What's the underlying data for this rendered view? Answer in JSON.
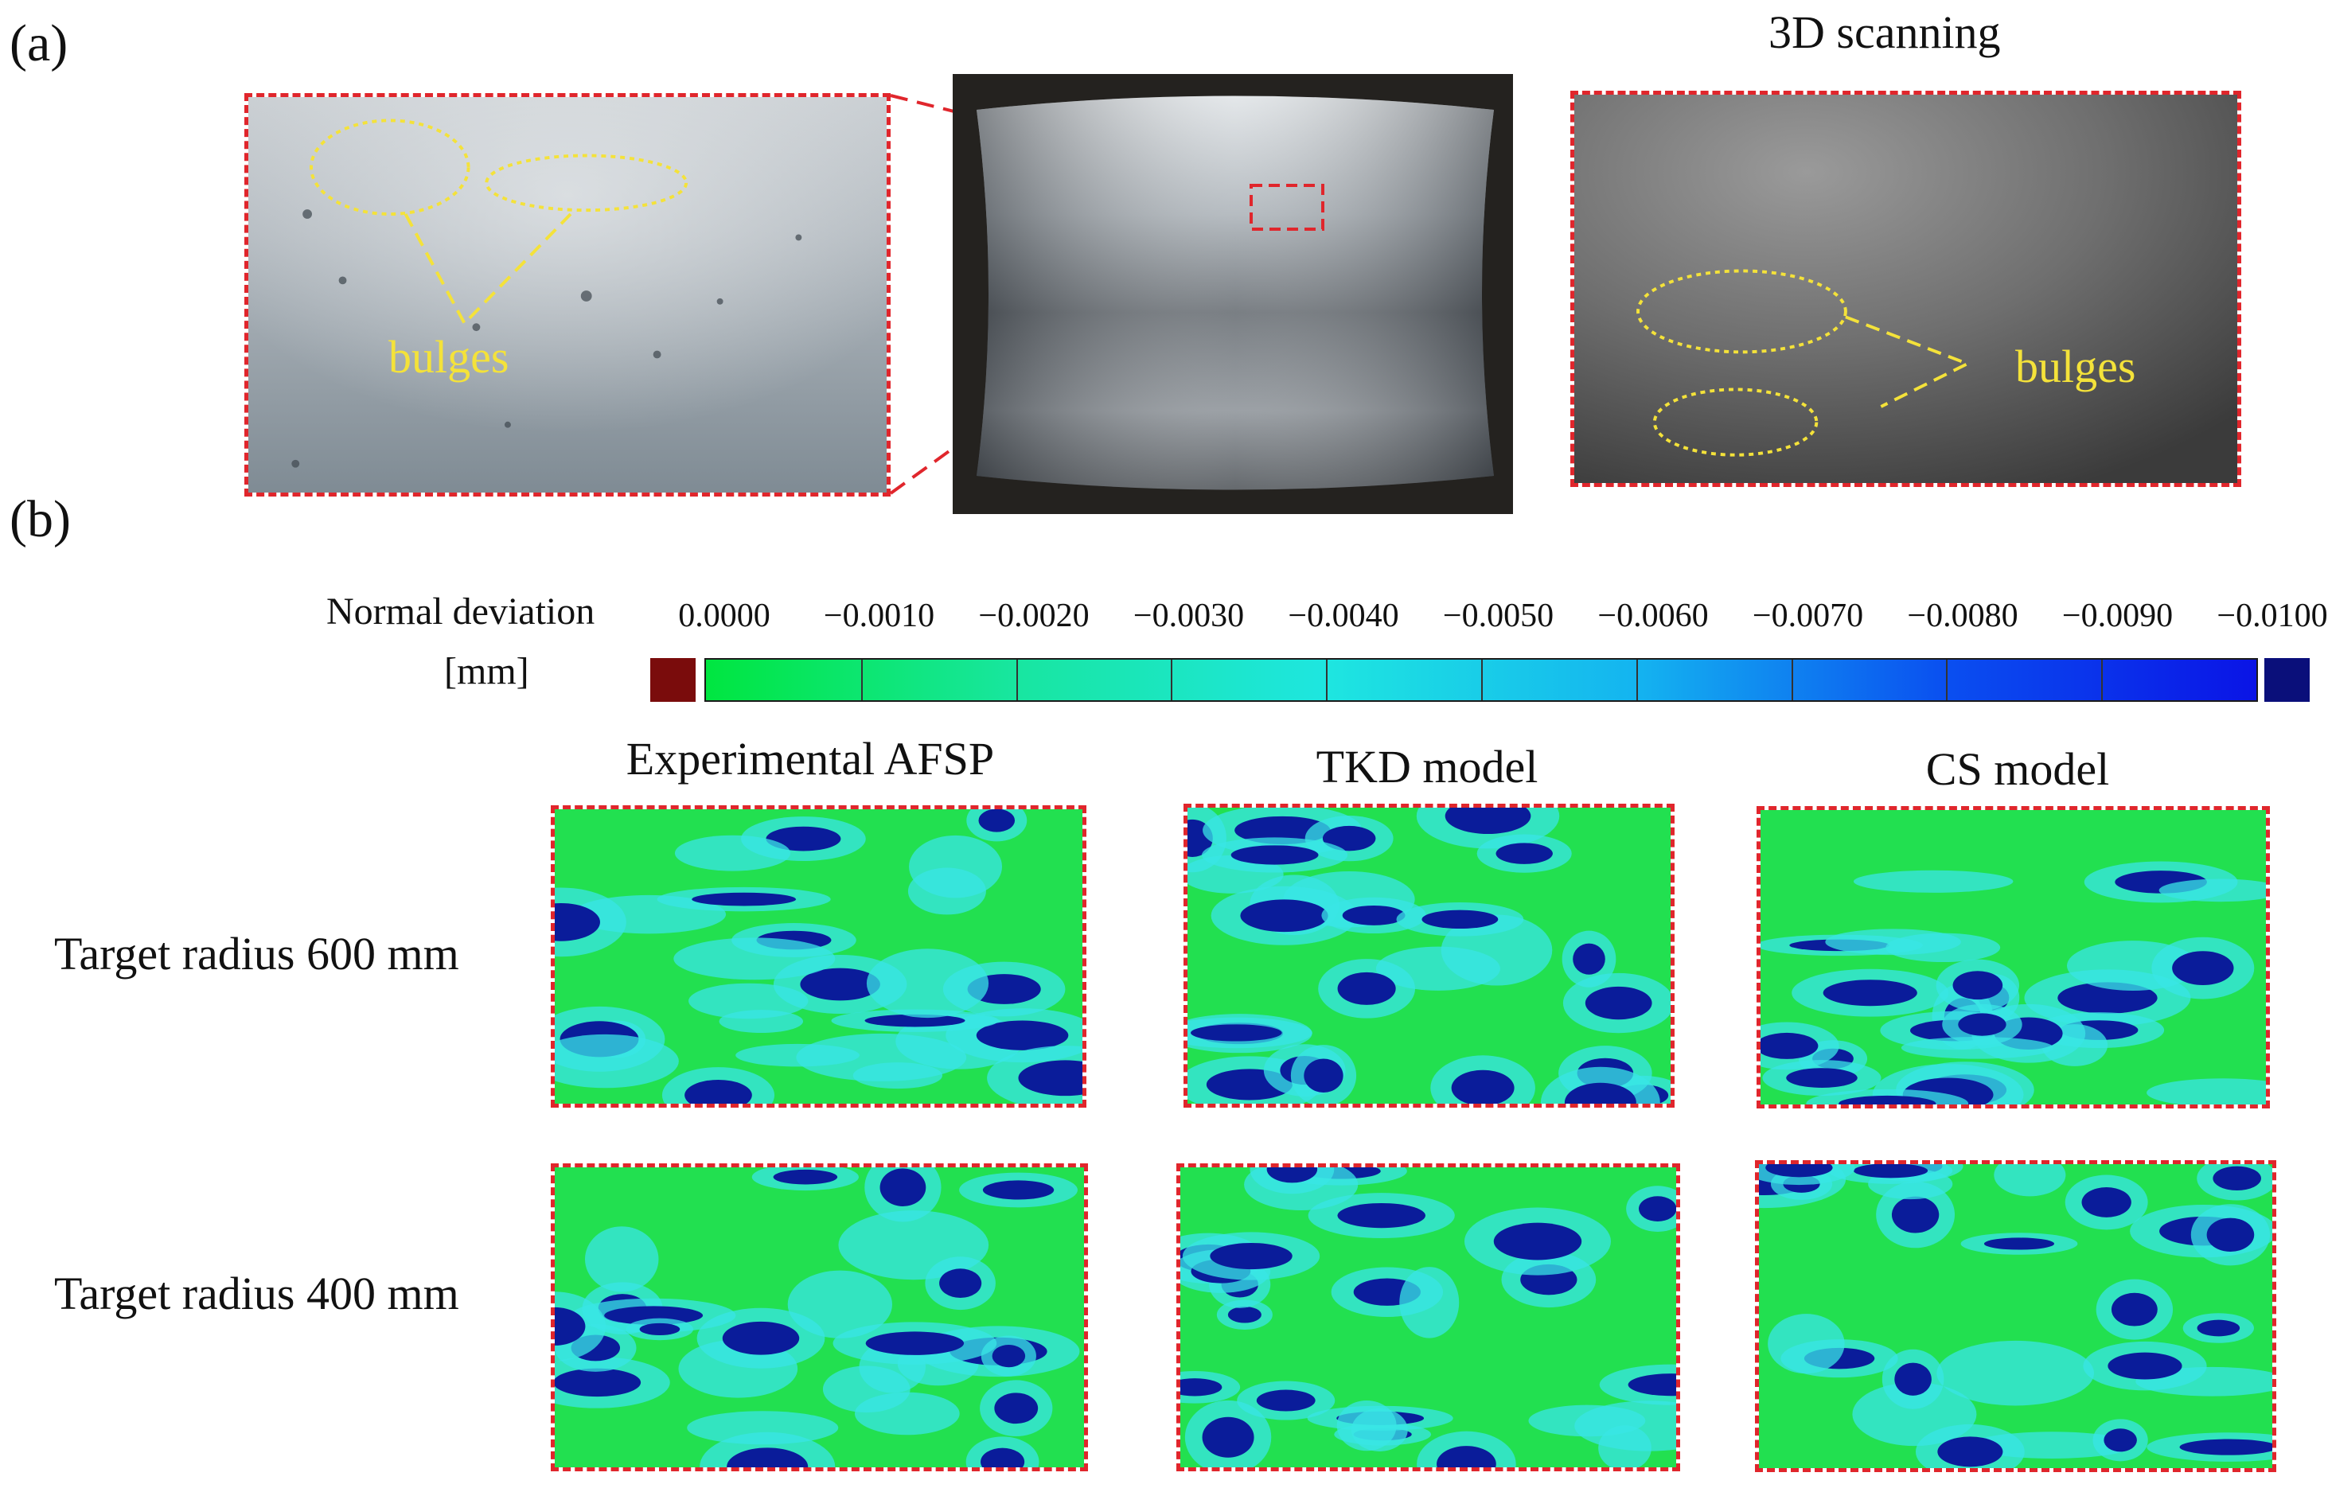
{
  "part_a": {
    "label": "(a)",
    "scan_title": "3D scanning",
    "left_bulges_label": "bulges",
    "right_bulges_label": "bulges"
  },
  "part_b": {
    "label": "(b)",
    "legend": {
      "title": "Normal deviation",
      "unit": "[mm]",
      "ticks": [
        "0.0000",
        "−0.0010",
        "−0.0020",
        "−0.0030",
        "−0.0040",
        "−0.0050",
        "−0.0060",
        "−0.0070",
        "−0.0080",
        "−0.0090",
        "−0.0100"
      ],
      "low_color": "#7a0c0c",
      "high_color": "#0a0f7a",
      "gradient": [
        "#00e640",
        "#18e6a0",
        "#1ee6e0",
        "#14b4f0",
        "#0a4ff0",
        "#0a14e6"
      ]
    },
    "columns": [
      "Experimental AFSP",
      "TKD model",
      "CS model"
    ],
    "rows": [
      "Target radius 600 mm",
      "Target radius 400 mm"
    ]
  },
  "colors": {
    "dash": "#e0262c",
    "annotation": "#f4e23a",
    "map_green": "#22e050",
    "map_cyan": "#3ae6e6",
    "map_blue": "#0a1c9a"
  }
}
